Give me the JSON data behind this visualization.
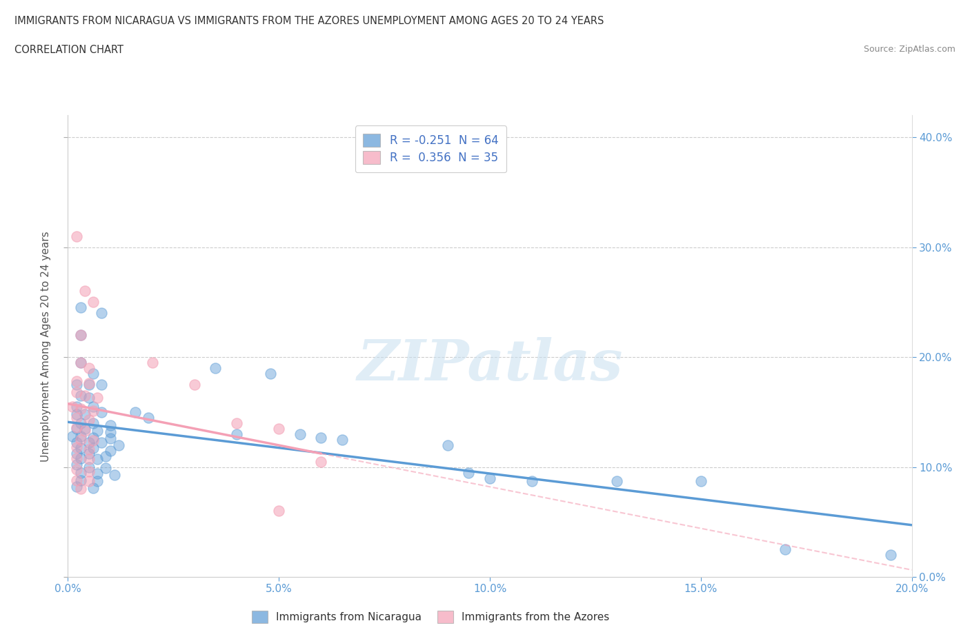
{
  "title_line1": "IMMIGRANTS FROM NICARAGUA VS IMMIGRANTS FROM THE AZORES UNEMPLOYMENT AMONG AGES 20 TO 24 YEARS",
  "title_line2": "CORRELATION CHART",
  "source": "Source: ZipAtlas.com",
  "ylabel": "Unemployment Among Ages 20 to 24 years",
  "xlim": [
    0.0,
    0.2
  ],
  "ylim": [
    0.0,
    0.42
  ],
  "xticks": [
    0.0,
    0.05,
    0.1,
    0.15,
    0.2
  ],
  "yticks": [
    0.0,
    0.1,
    0.2,
    0.3,
    0.4
  ],
  "xtick_labels": [
    "0.0%",
    "5.0%",
    "10.0%",
    "15.0%",
    "20.0%"
  ],
  "ytick_labels": [
    "0.0%",
    "10.0%",
    "20.0%",
    "30.0%",
    "40.0%"
  ],
  "nicaragua_color": "#5b9bd5",
  "azores_color": "#f4a0b5",
  "nicaragua_R": -0.251,
  "nicaragua_N": 64,
  "azores_R": 0.356,
  "azores_N": 35,
  "watermark": "ZIPatlas",
  "legend_label_nicaragua": "Immigrants from Nicaragua",
  "legend_label_azores": "Immigrants from the Azores",
  "nicaragua_scatter": [
    [
      0.003,
      0.245
    ],
    [
      0.008,
      0.24
    ],
    [
      0.003,
      0.22
    ],
    [
      0.003,
      0.195
    ],
    [
      0.006,
      0.185
    ],
    [
      0.002,
      0.175
    ],
    [
      0.005,
      0.175
    ],
    [
      0.008,
      0.175
    ],
    [
      0.003,
      0.165
    ],
    [
      0.005,
      0.163
    ],
    [
      0.002,
      0.155
    ],
    [
      0.006,
      0.155
    ],
    [
      0.008,
      0.15
    ],
    [
      0.002,
      0.148
    ],
    [
      0.004,
      0.148
    ],
    [
      0.003,
      0.14
    ],
    [
      0.006,
      0.14
    ],
    [
      0.01,
      0.138
    ],
    [
      0.002,
      0.135
    ],
    [
      0.004,
      0.135
    ],
    [
      0.007,
      0.133
    ],
    [
      0.01,
      0.132
    ],
    [
      0.001,
      0.128
    ],
    [
      0.003,
      0.128
    ],
    [
      0.006,
      0.127
    ],
    [
      0.01,
      0.126
    ],
    [
      0.002,
      0.122
    ],
    [
      0.005,
      0.122
    ],
    [
      0.008,
      0.122
    ],
    [
      0.012,
      0.12
    ],
    [
      0.003,
      0.117
    ],
    [
      0.006,
      0.117
    ],
    [
      0.01,
      0.115
    ],
    [
      0.002,
      0.112
    ],
    [
      0.005,
      0.112
    ],
    [
      0.009,
      0.11
    ],
    [
      0.003,
      0.108
    ],
    [
      0.007,
      0.107
    ],
    [
      0.002,
      0.102
    ],
    [
      0.005,
      0.1
    ],
    [
      0.009,
      0.099
    ],
    [
      0.003,
      0.095
    ],
    [
      0.007,
      0.094
    ],
    [
      0.011,
      0.093
    ],
    [
      0.003,
      0.088
    ],
    [
      0.007,
      0.087
    ],
    [
      0.002,
      0.082
    ],
    [
      0.006,
      0.081
    ],
    [
      0.016,
      0.15
    ],
    [
      0.019,
      0.145
    ],
    [
      0.035,
      0.19
    ],
    [
      0.048,
      0.185
    ],
    [
      0.04,
      0.13
    ],
    [
      0.055,
      0.13
    ],
    [
      0.06,
      0.127
    ],
    [
      0.065,
      0.125
    ],
    [
      0.09,
      0.12
    ],
    [
      0.095,
      0.095
    ],
    [
      0.1,
      0.09
    ],
    [
      0.11,
      0.087
    ],
    [
      0.13,
      0.087
    ],
    [
      0.15,
      0.087
    ],
    [
      0.17,
      0.025
    ],
    [
      0.195,
      0.02
    ]
  ],
  "azores_scatter": [
    [
      0.002,
      0.31
    ],
    [
      0.004,
      0.26
    ],
    [
      0.006,
      0.25
    ],
    [
      0.003,
      0.22
    ],
    [
      0.003,
      0.195
    ],
    [
      0.005,
      0.19
    ],
    [
      0.002,
      0.178
    ],
    [
      0.005,
      0.176
    ],
    [
      0.002,
      0.168
    ],
    [
      0.004,
      0.165
    ],
    [
      0.007,
      0.163
    ],
    [
      0.001,
      0.155
    ],
    [
      0.003,
      0.153
    ],
    [
      0.006,
      0.151
    ],
    [
      0.002,
      0.145
    ],
    [
      0.005,
      0.143
    ],
    [
      0.002,
      0.136
    ],
    [
      0.004,
      0.133
    ],
    [
      0.003,
      0.125
    ],
    [
      0.006,
      0.124
    ],
    [
      0.002,
      0.118
    ],
    [
      0.005,
      0.116
    ],
    [
      0.002,
      0.108
    ],
    [
      0.005,
      0.107
    ],
    [
      0.002,
      0.098
    ],
    [
      0.005,
      0.096
    ],
    [
      0.002,
      0.088
    ],
    [
      0.005,
      0.087
    ],
    [
      0.003,
      0.08
    ],
    [
      0.02,
      0.195
    ],
    [
      0.03,
      0.175
    ],
    [
      0.04,
      0.14
    ],
    [
      0.05,
      0.135
    ],
    [
      0.06,
      0.105
    ],
    [
      0.05,
      0.06
    ]
  ]
}
